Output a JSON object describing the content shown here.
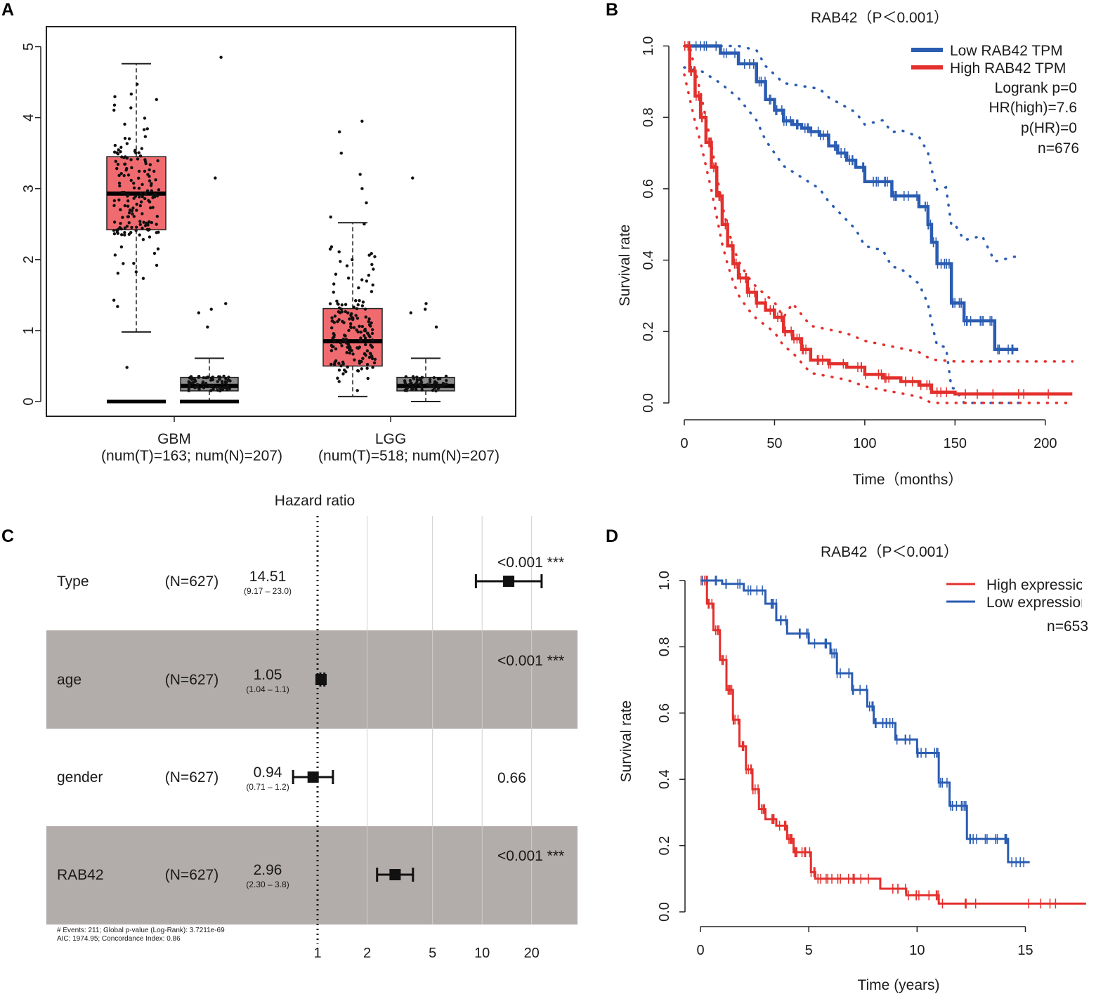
{
  "colors": {
    "tumor_box": "#f06b6f",
    "normal_box": "#8c8c8c",
    "low": "#2a5cb2",
    "high": "#e3302d",
    "forest_band": "#b2acaa",
    "dot": "#111111"
  },
  "chart_data": [
    {
      "panel": "A",
      "type": "box",
      "ylim": [
        0,
        5.3
      ],
      "yticks": [
        "0",
        "1",
        "2",
        "3",
        "4",
        "5"
      ],
      "groups": [
        {
          "label": "GBM",
          "sublabel": "(num(T)=163; num(N)=207)",
          "tumor": {
            "min": 0.98,
            "q1": 2.42,
            "median": 2.93,
            "q3": 3.45,
            "max": 4.76,
            "outliers": [
              0.0,
              0.0,
              0.0,
              0.48
            ]
          },
          "normal": {
            "min": 0.0,
            "q1": 0.15,
            "median": 0.22,
            "q3": 0.34,
            "max": 0.61,
            "outliers": [
              1.3,
              1.38,
              1.25,
              1.05,
              3.15,
              4.85
            ]
          }
        },
        {
          "label": "LGG",
          "sublabel": "(num(T)=518; num(N)=207)",
          "tumor": {
            "min": 0.07,
            "q1": 0.5,
            "median": 0.85,
            "q3": 1.31,
            "max": 2.52,
            "outliers": [
              2.6,
              2.8,
              3.0,
              3.2,
              3.5,
              3.8,
              3.95
            ]
          },
          "normal": {
            "min": 0.0,
            "q1": 0.15,
            "median": 0.22,
            "q3": 0.34,
            "max": 0.61,
            "outliers": [
              1.3,
              1.38,
              1.25,
              1.05,
              3.15
            ]
          }
        }
      ]
    },
    {
      "panel": "B",
      "type": "line",
      "title": "RAB42（P＜0.001）",
      "xlabel": "Time（months）",
      "ylabel": "Survival rate",
      "xlim": [
        0,
        225
      ],
      "ylim": [
        0,
        1.02
      ],
      "xticks": [
        "0",
        "50",
        "100",
        "150",
        "200"
      ],
      "yticks": [
        "0.0",
        "0.2",
        "0.4",
        "0.6",
        "0.8",
        "1.0"
      ],
      "legend": [
        "Low RAB42 TPM",
        "High RAB42 TPM"
      ],
      "stats": [
        "Logrank p=0",
        "HR(high)=7.6",
        "p(HR)=0",
        "n=676"
      ],
      "series": [
        {
          "name": "Low RAB42 TPM",
          "x": [
            0,
            10,
            20,
            30,
            40,
            45,
            50,
            55,
            60,
            65,
            70,
            75,
            80,
            85,
            90,
            95,
            100,
            110,
            115,
            120,
            130,
            135,
            137,
            140,
            145,
            148,
            150,
            155,
            158,
            165,
            172,
            175,
            185
          ],
          "y": [
            1.0,
            1.0,
            0.98,
            0.95,
            0.9,
            0.85,
            0.82,
            0.79,
            0.78,
            0.77,
            0.76,
            0.75,
            0.72,
            0.7,
            0.68,
            0.66,
            0.62,
            0.62,
            0.58,
            0.58,
            0.55,
            0.5,
            0.45,
            0.39,
            0.39,
            0.28,
            0.28,
            0.23,
            0.23,
            0.23,
            0.15,
            0.15,
            0.15
          ]
        },
        {
          "name": "High RAB42 TPM",
          "x": [
            0,
            3,
            6,
            9,
            12,
            15,
            18,
            21,
            24,
            27,
            30,
            35,
            40,
            45,
            50,
            55,
            60,
            65,
            70,
            80,
            90,
            100,
            110,
            120,
            130,
            137,
            150,
            180,
            215
          ],
          "y": [
            1.0,
            0.93,
            0.86,
            0.8,
            0.73,
            0.66,
            0.58,
            0.5,
            0.44,
            0.39,
            0.35,
            0.31,
            0.28,
            0.26,
            0.24,
            0.2,
            0.18,
            0.15,
            0.12,
            0.11,
            0.1,
            0.08,
            0.07,
            0.06,
            0.05,
            0.03,
            0.025,
            0.025,
            0.025
          ]
        }
      ]
    },
    {
      "panel": "C",
      "type": "forest",
      "title": "Hazard ratio",
      "xticks": [
        "1",
        "2",
        "5",
        "10",
        "20"
      ],
      "rows": [
        {
          "variable": "Type",
          "n": "(N=627)",
          "hr": "14.51",
          "ci": "(9.17 – 23.0)",
          "p": "<0.001 ***",
          "hr_val": 14.51,
          "lo": 9.17,
          "hi": 23.0
        },
        {
          "variable": "age",
          "n": "(N=627)",
          "hr": "1.05",
          "ci": "(1.04 – 1.1)",
          "p": "<0.001 ***",
          "hr_val": 1.05,
          "lo": 1.04,
          "hi": 1.1
        },
        {
          "variable": "gender",
          "n": "(N=627)",
          "hr": "0.94",
          "ci": "(0.71 – 1.2)",
          "p": "0.66",
          "hr_val": 0.94,
          "lo": 0.71,
          "hi": 1.24
        },
        {
          "variable": "RAB42",
          "n": "(N=627)",
          "hr": "2.96",
          "ci": "(2.30 – 3.8)",
          "p": "<0.001 ***",
          "hr_val": 2.96,
          "lo": 2.3,
          "hi": 3.8
        }
      ],
      "footnote1": "# Events: 211; Global p-value (Log-Rank): 3.7211e-69",
      "footnote2": "AIC: 1974.95; Concordance Index: 0.86"
    },
    {
      "panel": "D",
      "type": "line",
      "title": "RAB42（P＜0.001）",
      "xlabel": "Time (years)",
      "ylabel": "Survival rate",
      "xlim": [
        0,
        18
      ],
      "ylim": [
        0,
        1.02
      ],
      "xticks": [
        "0",
        "5",
        "10",
        "15"
      ],
      "yticks": [
        "0.0",
        "0.2",
        "0.4",
        "0.6",
        "0.8",
        "1.0"
      ],
      "legend": [
        "High expression",
        "Low expression"
      ],
      "stats": [
        "n=653"
      ],
      "series": [
        {
          "name": "High expression",
          "x": [
            0,
            0.3,
            0.6,
            0.9,
            1.2,
            1.5,
            1.8,
            2.1,
            2.4,
            2.7,
            3.0,
            3.5,
            4.0,
            4.3,
            4.6,
            5.1,
            5.3,
            6.0,
            7.0,
            8.3,
            9.5,
            10.5,
            11.0,
            13.0,
            17.8
          ],
          "y": [
            1.0,
            0.93,
            0.85,
            0.76,
            0.67,
            0.58,
            0.5,
            0.43,
            0.37,
            0.31,
            0.28,
            0.26,
            0.22,
            0.18,
            0.18,
            0.12,
            0.1,
            0.1,
            0.1,
            0.07,
            0.05,
            0.05,
            0.025,
            0.025,
            0.025
          ]
        },
        {
          "name": "Low expression",
          "x": [
            0,
            1,
            2,
            3,
            3.5,
            4,
            5,
            6,
            6.3,
            7,
            7.7,
            8.0,
            8.5,
            9.0,
            10.0,
            10.5,
            11.0,
            11.5,
            12.0,
            12.3,
            13.0,
            14.0,
            14.2,
            15.2
          ],
          "y": [
            1.0,
            0.99,
            0.97,
            0.93,
            0.88,
            0.84,
            0.81,
            0.78,
            0.72,
            0.67,
            0.62,
            0.57,
            0.57,
            0.52,
            0.48,
            0.48,
            0.39,
            0.32,
            0.32,
            0.22,
            0.22,
            0.22,
            0.15,
            0.15
          ]
        }
      ]
    }
  ]
}
